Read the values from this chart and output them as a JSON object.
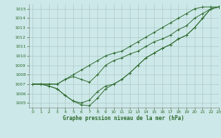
{
  "title": "Graphe pression niveau de la mer (hPa)",
  "bg_color": "#cce8e8",
  "grid_color": "#b0c8c8",
  "line_color": "#2d6a2d",
  "xlim": [
    -0.5,
    23
  ],
  "ylim": [
    1004.5,
    1015.5
  ],
  "yticks": [
    1005,
    1006,
    1007,
    1008,
    1009,
    1010,
    1011,
    1012,
    1013,
    1014,
    1015
  ],
  "xticks": [
    0,
    1,
    2,
    3,
    4,
    5,
    6,
    7,
    8,
    9,
    10,
    11,
    12,
    13,
    14,
    15,
    16,
    17,
    18,
    19,
    20,
    21,
    22,
    23
  ],
  "s1": [
    1007.0,
    1007.0,
    1007.0,
    1007.0,
    1007.5,
    1007.8,
    1007.5,
    1007.2,
    1008.0,
    1009.0,
    1009.5,
    1009.8,
    1010.2,
    1010.5,
    1011.0,
    1011.5,
    1011.8,
    1012.2,
    1012.8,
    1013.2,
    1014.0,
    1014.5,
    1015.0,
    1015.2
  ],
  "s2": [
    1007.0,
    1007.0,
    1006.8,
    1006.5,
    1005.8,
    1005.2,
    1004.8,
    1004.7,
    1005.5,
    1006.5,
    1007.0,
    1007.5,
    1008.2,
    1009.0,
    1009.8,
    1010.3,
    1010.8,
    1011.2,
    1011.8,
    1012.2,
    1013.0,
    1014.0,
    1015.0,
    1015.2
  ],
  "s3": [
    1007.0,
    1007.0,
    1006.8,
    1006.5,
    1005.8,
    1005.2,
    1005.0,
    1005.3,
    1006.2,
    1006.8,
    1007.0,
    1007.5,
    1008.2,
    1009.0,
    1009.8,
    1010.3,
    1010.8,
    1011.2,
    1011.8,
    1012.2,
    1013.0,
    1014.0,
    1015.0,
    1015.2
  ],
  "s4": [
    1007.0,
    1007.0,
    1007.0,
    1007.0,
    1007.5,
    1008.0,
    1008.5,
    1009.0,
    1009.5,
    1010.0,
    1010.3,
    1010.5,
    1011.0,
    1011.5,
    1012.0,
    1012.5,
    1013.0,
    1013.5,
    1014.0,
    1014.5,
    1015.0,
    1015.2,
    1015.2,
    1015.2
  ]
}
